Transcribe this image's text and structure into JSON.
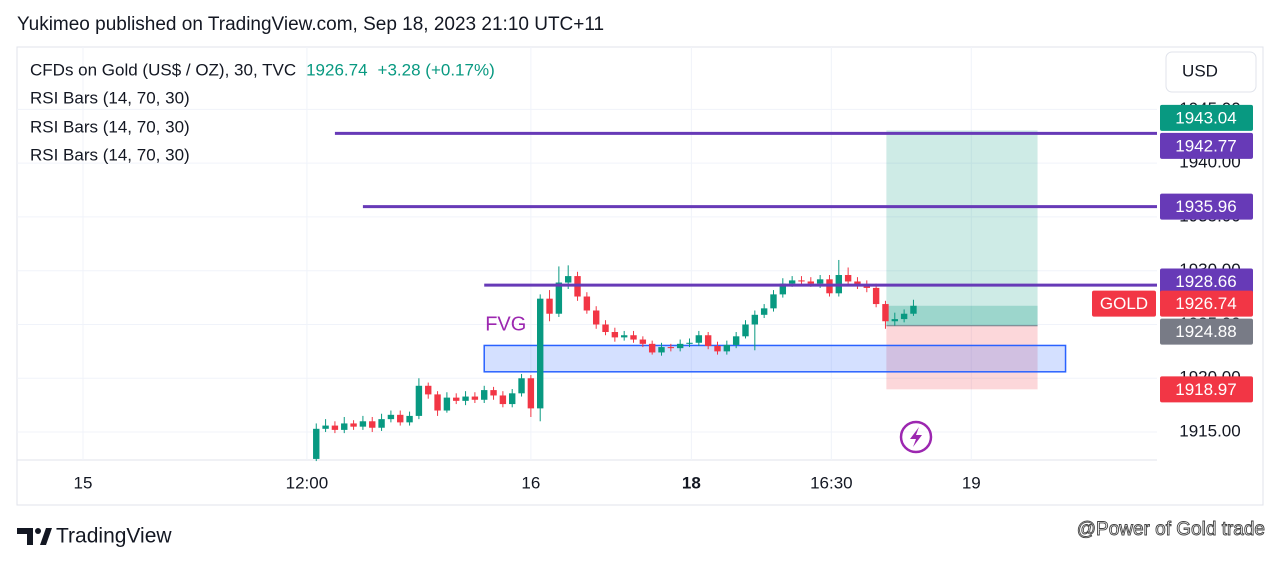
{
  "header": "Yukimeo published on TradingView.com, Sep 18, 2023 21:10 UTC+11",
  "chart_data": {
    "type": "candlestick",
    "symbol": "CFDs on Gold (US$ / OZ), 30, TVC",
    "last": 1926.74,
    "change": "+3.28 (+0.17%)",
    "indicators": [
      "RSI Bars (14, 70, 30)",
      "RSI Bars (14, 70, 30)",
      "RSI Bars (14, 70, 30)"
    ],
    "currency": "USD",
    "symbol_tag": "GOLD",
    "up_color": "#089981",
    "down_color": "#f23645",
    "x": [
      25,
      26,
      27,
      28,
      29,
      30,
      31,
      32,
      33,
      34,
      35,
      36,
      37,
      38,
      39,
      40,
      41,
      42,
      43,
      44,
      45,
      46,
      47,
      48,
      49,
      50,
      51,
      52,
      53,
      54,
      55,
      56,
      57,
      58,
      59,
      60,
      61,
      62,
      63,
      64,
      65,
      66,
      67,
      68,
      69,
      70,
      71,
      72,
      73,
      74,
      75,
      76,
      77,
      78,
      79,
      80,
      81,
      82,
      83,
      84,
      85,
      86,
      87,
      88,
      89
    ],
    "open": [
      1912.5,
      1915.3,
      1915.6,
      1915.2,
      1915.8,
      1915.5,
      1916.0,
      1915.4,
      1916.2,
      1916.6,
      1915.9,
      1916.5,
      1919.3,
      1918.5,
      1917.0,
      1918.2,
      1917.9,
      1918.3,
      1918.0,
      1918.9,
      1918.4,
      1917.6,
      1918.6,
      1920.0,
      1917.2,
      1927.4,
      1926.0,
      1928.9,
      1929.5,
      1927.6,
      1926.3,
      1925.0,
      1924.3,
      1923.8,
      1924.0,
      1923.6,
      1923.2,
      1922.4,
      1922.9,
      1922.8,
      1923.2,
      1923.3,
      1924.0,
      1923.0,
      1922.5,
      1923.1,
      1923.9,
      1925.0,
      1925.9,
      1926.5,
      1927.8,
      1928.8,
      1929.1,
      1929.0,
      1928.8,
      1929.2,
      1927.9,
      1929.6,
      1929.0,
      1928.7,
      1928.4,
      1926.9,
      1925.3,
      1925.5,
      1926.0
    ],
    "high": [
      1915.8,
      1916.2,
      1916.0,
      1916.4,
      1916.1,
      1916.5,
      1916.4,
      1916.7,
      1917.0,
      1917.0,
      1916.9,
      1920.0,
      1919.6,
      1918.8,
      1918.7,
      1918.6,
      1918.8,
      1918.7,
      1919.3,
      1919.2,
      1918.8,
      1919.0,
      1920.4,
      1920.3,
      1927.8,
      1928.2,
      1930.4,
      1930.5,
      1929.9,
      1928.0,
      1926.7,
      1925.4,
      1924.7,
      1924.4,
      1924.4,
      1923.9,
      1923.5,
      1923.3,
      1923.2,
      1923.6,
      1923.7,
      1924.4,
      1924.3,
      1923.4,
      1923.5,
      1924.3,
      1925.4,
      1926.3,
      1926.9,
      1928.2,
      1929.3,
      1929.5,
      1929.5,
      1929.4,
      1929.6,
      1929.6,
      1931.0,
      1930.3,
      1929.4,
      1929.1,
      1928.8,
      1927.2,
      1926.1,
      1926.4,
      1927.3
    ],
    "low": [
      1912.3,
      1915.0,
      1914.9,
      1914.9,
      1915.2,
      1915.2,
      1915.0,
      1915.1,
      1915.9,
      1915.6,
      1915.6,
      1916.2,
      1918.1,
      1916.5,
      1916.8,
      1917.6,
      1917.5,
      1917.7,
      1917.7,
      1918.0,
      1917.3,
      1917.3,
      1918.3,
      1916.4,
      1916.0,
      1925.3,
      1925.7,
      1928.3,
      1927.2,
      1926.0,
      1924.6,
      1924.0,
      1923.4,
      1923.5,
      1923.3,
      1922.9,
      1922.2,
      1922.1,
      1922.5,
      1922.5,
      1922.9,
      1923.0,
      1922.7,
      1922.2,
      1922.2,
      1922.8,
      1923.7,
      1922.6,
      1925.6,
      1926.2,
      1927.5,
      1928.5,
      1928.7,
      1928.5,
      1928.4,
      1927.6,
      1927.6,
      1928.7,
      1928.3,
      1928.0,
      1926.6,
      1924.6,
      1924.9,
      1925.2,
      1925.8
    ],
    "close": [
      1915.3,
      1915.6,
      1915.2,
      1915.8,
      1915.5,
      1916.0,
      1915.4,
      1916.2,
      1916.6,
      1915.9,
      1916.5,
      1919.3,
      1918.5,
      1917.0,
      1918.2,
      1917.9,
      1918.3,
      1918.0,
      1918.9,
      1918.4,
      1917.6,
      1918.6,
      1920.0,
      1917.2,
      1927.4,
      1926.0,
      1928.9,
      1929.5,
      1927.6,
      1926.3,
      1925.0,
      1924.3,
      1923.8,
      1924.0,
      1923.6,
      1923.2,
      1922.4,
      1922.9,
      1922.8,
      1923.2,
      1923.3,
      1924.0,
      1923.0,
      1922.5,
      1923.1,
      1923.9,
      1925.0,
      1925.9,
      1926.5,
      1927.8,
      1928.8,
      1929.1,
      1929.0,
      1928.8,
      1929.2,
      1927.9,
      1929.6,
      1929.0,
      1928.7,
      1928.4,
      1926.9,
      1925.3,
      1925.5,
      1926.0,
      1926.74
    ],
    "xlim": [
      -7.07,
      115.1
    ],
    "xticks": [
      {
        "value": 0,
        "label": "15"
      },
      {
        "value": 24,
        "label": "12:00"
      },
      {
        "value": 48,
        "label": "16"
      },
      {
        "value": 65.2,
        "label": "18"
      },
      {
        "value": 80.2,
        "label": "16:30"
      },
      {
        "value": 95.2,
        "label": "19"
      }
    ],
    "ylim": [
      1912.4,
      1950.8
    ],
    "yticks": [
      {
        "value": 1915,
        "label": "1915.00"
      },
      {
        "value": 1920,
        "label": "1920.00"
      },
      {
        "value": 1925,
        "label": "1925.00"
      },
      {
        "value": 1930,
        "label": "1930.00"
      },
      {
        "value": 1935,
        "label": "1935.00"
      },
      {
        "value": 1940,
        "label": "1940.00"
      },
      {
        "value": 1945,
        "label": "1945.00"
      }
    ],
    "grid": true,
    "level_color": "#673ab7",
    "levels": [
      {
        "value": 1942.77,
        "from": 27
      },
      {
        "value": 1935.96,
        "from": 30
      },
      {
        "value": 1928.66,
        "from": 43
      }
    ],
    "position": {
      "entry": 1924.88,
      "target": 1943.04,
      "stop": 1918.97,
      "from": 86.1,
      "to": 102.3
    },
    "fvg": {
      "label": "FVG",
      "top": 1923.05,
      "bottom": 1920.6,
      "from": 43,
      "to": 105.3
    }
  },
  "footer": {
    "brand": "TradingView",
    "watermark": "@Power of Gold trade"
  }
}
